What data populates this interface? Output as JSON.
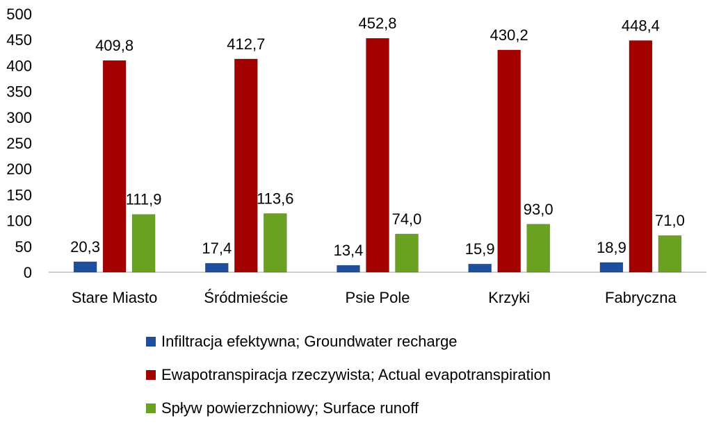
{
  "chart_data": {
    "type": "bar",
    "categories": [
      "Stare Miasto",
      "Śródmieście",
      "Psie Pole",
      "Krzyki",
      "Fabryczna"
    ],
    "series": [
      {
        "name": "Infiltracja efektywna; Groundwater recharge",
        "color": "#1f4e9c",
        "values": [
          20.3,
          17.4,
          13.4,
          15.9,
          18.9
        ],
        "labels": [
          "20,3",
          "17,4",
          "13,4",
          "15,9",
          "18,9"
        ]
      },
      {
        "name": "Ewapotranspiracja rzeczywista; Actual evapotranspiration",
        "color": "#a30000",
        "values": [
          409.8,
          412.7,
          452.8,
          430.2,
          448.4
        ],
        "labels": [
          "409,8",
          "412,7",
          "452,8",
          "430,2",
          "448,4"
        ]
      },
      {
        "name": "Spływ powierzchniowy; Surface runoff",
        "color": "#6aa121",
        "values": [
          111.9,
          113.6,
          74.0,
          93.0,
          71.0
        ],
        "labels": [
          "111,9",
          "113,6",
          "74,0",
          "93,0",
          "71,0"
        ]
      }
    ],
    "yticks": [
      "0",
      "50",
      "100",
      "150",
      "200",
      "250",
      "300",
      "350",
      "400",
      "450",
      "500"
    ],
    "ylim": [
      0,
      500
    ],
    "grid": false,
    "legend_position": "bottom",
    "title": "",
    "xlabel": "",
    "ylabel": ""
  }
}
